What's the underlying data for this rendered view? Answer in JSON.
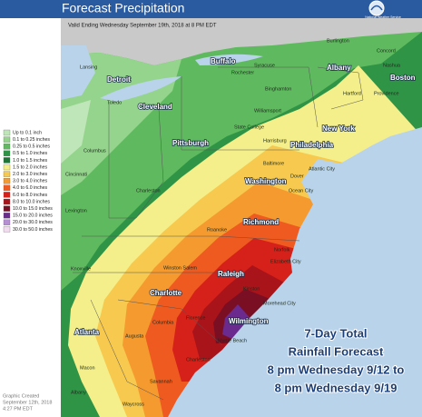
{
  "header": {
    "title": "Forecast Precipitation",
    "agency": "National Weather Service"
  },
  "map": {
    "valid": "Valid Ending Wednesday September 19th, 2018 at 8 PM EDT"
  },
  "legend": {
    "items": [
      {
        "label": "Up to 0.1 inch",
        "color": "#bfe6b8"
      },
      {
        "label": "0.1 to 0.25 inches",
        "color": "#94d48c"
      },
      {
        "label": "0.25 to 0.5 inches",
        "color": "#5fba5f"
      },
      {
        "label": "0.5 to 1.0 inches",
        "color": "#2f9446"
      },
      {
        "label": "1.0 to 1.5 inches",
        "color": "#1f7438"
      },
      {
        "label": "1.5 to 2.0 inches",
        "color": "#f4ef8a"
      },
      {
        "label": "2.0 to 3.0 inches",
        "color": "#f7c94e"
      },
      {
        "label": "3.0 to 4.0 inches",
        "color": "#f59a2f"
      },
      {
        "label": "4.0 to 6.0 inches",
        "color": "#ee5a1f"
      },
      {
        "label": "6.0 to 8.0 inches",
        "color": "#d6201a"
      },
      {
        "label": "8.0 to 10.0 inches",
        "color": "#a8141a"
      },
      {
        "label": "10.0 to 15.0 inches",
        "color": "#7a0f24"
      },
      {
        "label": "15.0 to 20.0 inches",
        "color": "#6a2a8e"
      },
      {
        "label": "20.0 to 30.0 inches",
        "color": "#b48fd1"
      },
      {
        "label": "30.0 to 50.0 inches",
        "color": "#f1dcef"
      }
    ]
  },
  "overlay": {
    "lines": [
      "7-Day Total",
      "Rainfall Forecast",
      "8 pm Wednesday 9/12 to",
      "8 pm Wednesday 9/19"
    ]
  },
  "footer": {
    "lines": [
      "Graphic Created",
      "September 12th, 2018",
      "4:27 PM EDT"
    ]
  },
  "cities": [
    "Lansing",
    "Detroit",
    "Toledo",
    "Cleveland",
    "Buffalo",
    "Rochester",
    "Syracuse",
    "Albany",
    "Burlington",
    "Concord",
    "Nashua",
    "Boston",
    "Providence",
    "Hartford",
    "Binghamton",
    "Williamsport",
    "State College",
    "Pittsburgh",
    "Columbus",
    "Cincinnati",
    "Harrisburg",
    "Philadelphia",
    "New York",
    "Atlantic City",
    "Baltimore",
    "Washington",
    "Dover",
    "Ocean City",
    "Charleston",
    "Lexington",
    "Roanoke",
    "Richmond",
    "Norfolk",
    "Elizabeth City",
    "Winston Salem",
    "Raleigh",
    "Charlotte",
    "Kinston",
    "Morehead City",
    "Wilmington",
    "Myrtle Beach",
    "Florence",
    "Columbia",
    "Augusta",
    "Atlanta",
    "Knoxville",
    "Charleston",
    "Savannah",
    "Macon",
    "Albany",
    "Waycross"
  ]
}
